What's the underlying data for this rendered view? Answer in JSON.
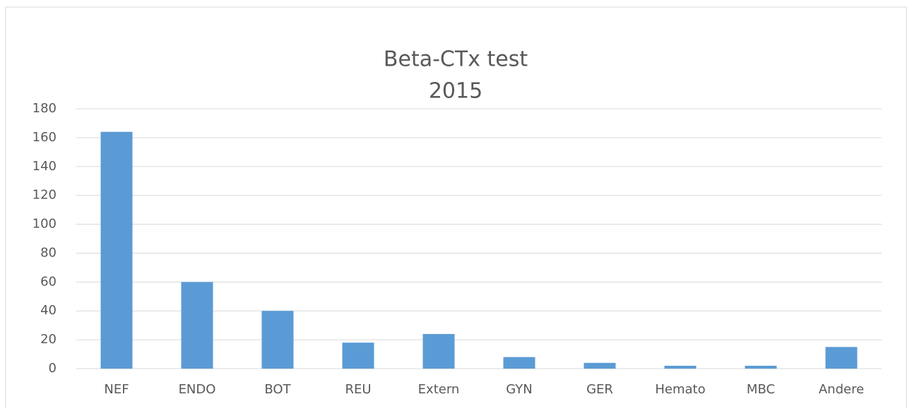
{
  "chart_data": {
    "type": "bar",
    "title": "Beta-CTx test",
    "subtitle": "2015",
    "categories": [
      "NEF",
      "ENDO",
      "BOT",
      "REU",
      "Extern",
      "GYN",
      "GER",
      "Hemato",
      "MBC",
      "Andere"
    ],
    "values": [
      164,
      60,
      40,
      18,
      24,
      8,
      4,
      2,
      2,
      15
    ],
    "color": "#5b9bd5",
    "ylim": [
      0,
      180
    ],
    "yticks": [
      0,
      20,
      40,
      60,
      80,
      100,
      120,
      140,
      160,
      180
    ],
    "grid": true
  }
}
